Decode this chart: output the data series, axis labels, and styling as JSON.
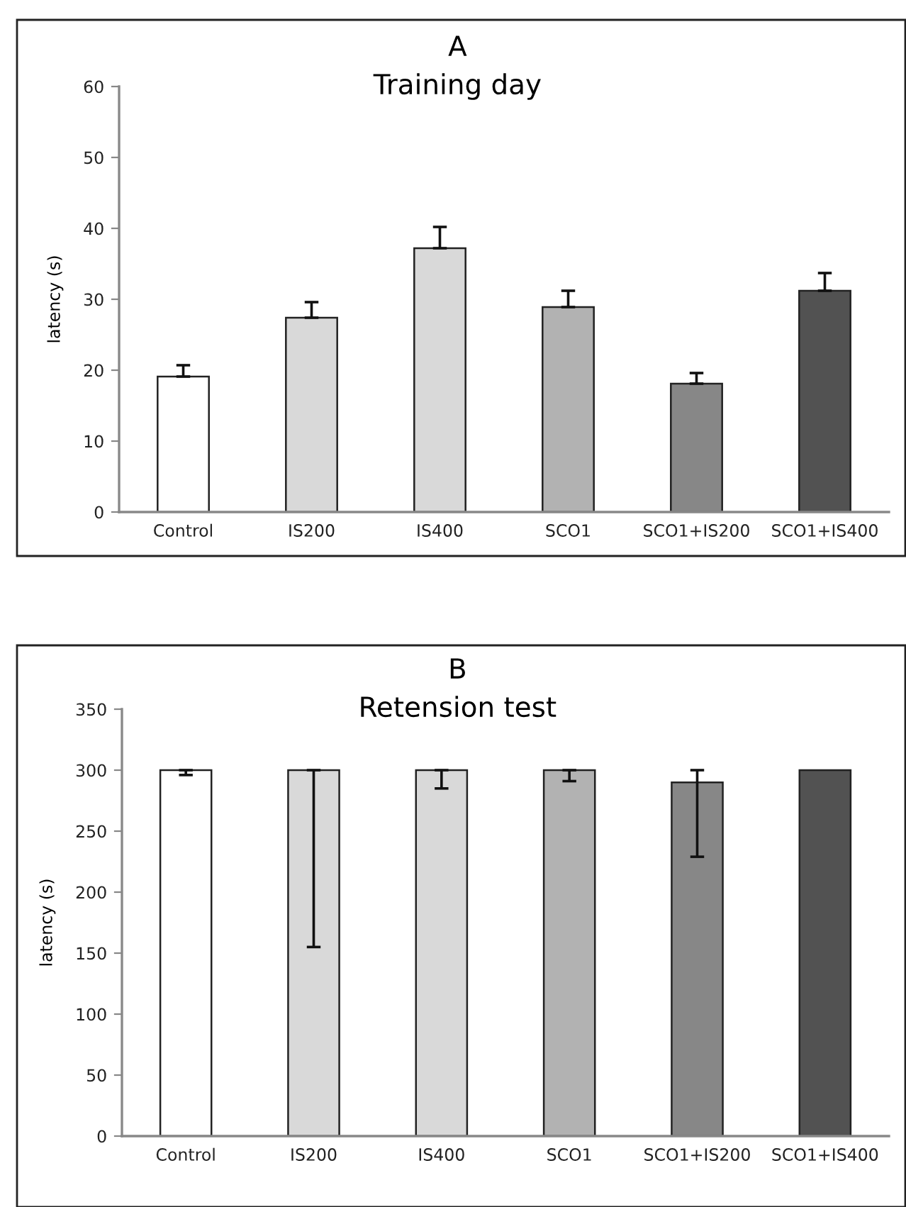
{
  "chart_data": [
    {
      "type": "bar",
      "title": "A",
      "subtitle": "Training day",
      "ylabel": "latency (s)",
      "categories": [
        "Control",
        "IS200",
        "IS400",
        "SCO1",
        "SCO1+IS200",
        "SCO1+IS400"
      ],
      "values": [
        19.1,
        27.4,
        37.2,
        28.9,
        18.1,
        31.2
      ],
      "errors": [
        [
          19.1,
          20.7
        ],
        [
          27.4,
          29.6
        ],
        [
          37.2,
          40.2
        ],
        [
          28.9,
          31.2
        ],
        [
          18.1,
          19.6
        ],
        [
          31.2,
          33.7
        ]
      ],
      "colors": [
        "#ffffff",
        "#d9d9d9",
        "#d9d9d9",
        "#b2b2b2",
        "#878787",
        "#525252"
      ],
      "ylim": [
        0,
        60
      ],
      "yticks": [
        0,
        10,
        20,
        30,
        40,
        50,
        60
      ],
      "grid": false,
      "legend": false
    },
    {
      "type": "bar",
      "title": "B",
      "subtitle": "Retension test",
      "ylabel": "latency (s)",
      "categories": [
        "Control",
        "IS200",
        "IS400",
        "SCO1",
        "SCO1+IS200",
        "SCO1+IS400"
      ],
      "values": [
        300,
        300,
        300,
        300,
        290,
        300
      ],
      "errors": [
        [
          296,
          300
        ],
        [
          155,
          300
        ],
        [
          285,
          300
        ],
        [
          291,
          300
        ],
        [
          229,
          300
        ],
        null
      ],
      "colors": [
        "#ffffff",
        "#d9d9d9",
        "#d9d9d9",
        "#b2b2b2",
        "#878787",
        "#525252"
      ],
      "ylim": [
        0,
        350
      ],
      "yticks": [
        0,
        50,
        100,
        150,
        200,
        250,
        300,
        350
      ],
      "grid": false,
      "legend": false
    }
  ]
}
